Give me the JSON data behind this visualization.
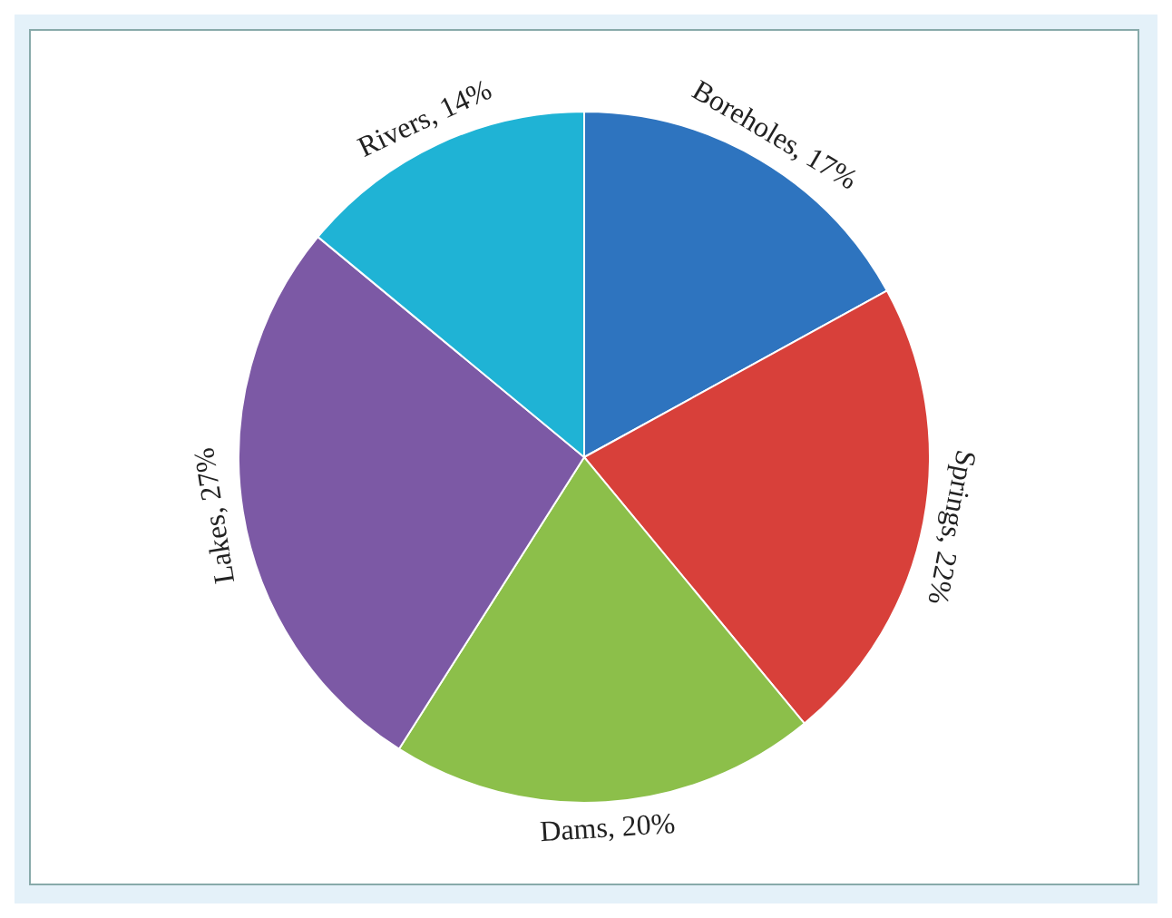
{
  "chart_data": {
    "type": "pie",
    "categories": [
      "Boreholes",
      "Springs",
      "Dams",
      "Lakes",
      "Rivers"
    ],
    "values": [
      17,
      22,
      20,
      27,
      14
    ],
    "value_labels": [
      "17%",
      "22%",
      "20%",
      "27%",
      "14%"
    ],
    "colors": [
      "#2e74bf",
      "#d8403a",
      "#8cbf4a",
      "#7c59a5",
      "#1fb3d5"
    ],
    "legend": false
  }
}
